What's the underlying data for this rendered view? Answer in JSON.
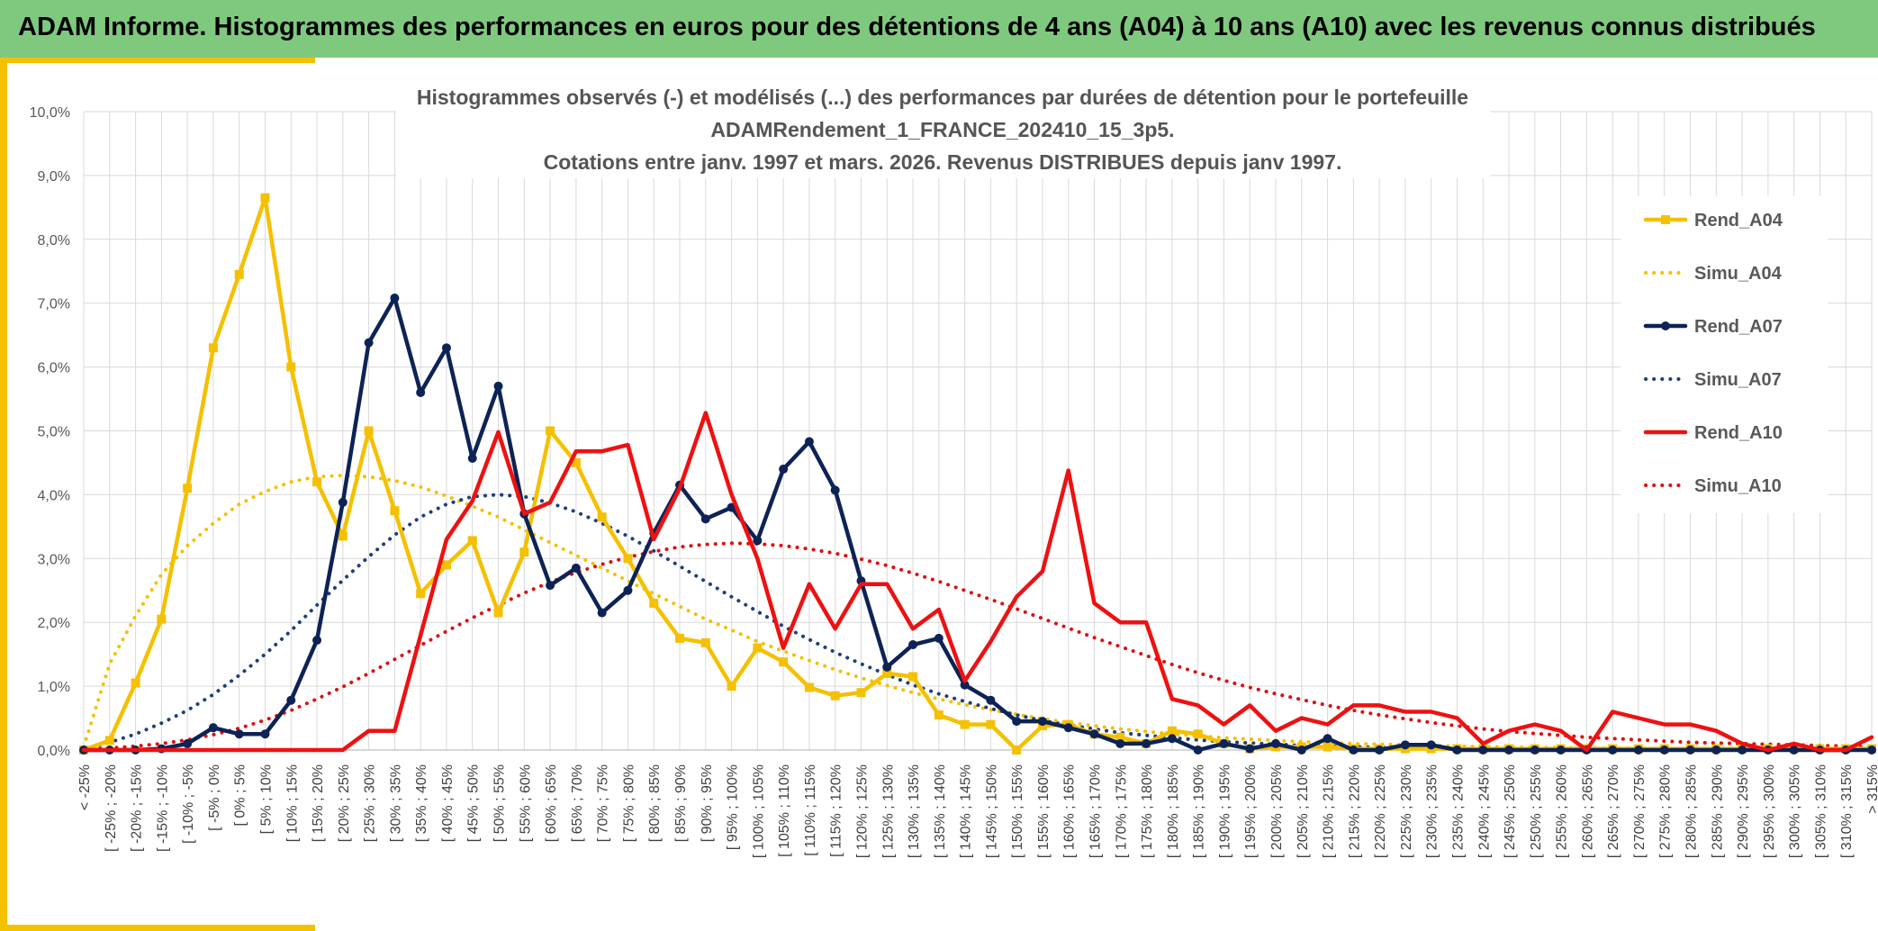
{
  "header": {
    "title": "ADAM Informe. Histogrammes des performances en euros pour des détentions de 4 ans (A04) à 10 ans (A10) avec les revenus connus distribués"
  },
  "chart_data": {
    "type": "line",
    "title_lines": [
      "Histogrammes observés (-) et modélisés (...) des performances par durées de détention pour le portefeuille",
      "ADAMRendement_1_FRANCE_202410_15_3p5.",
      "Cotations entre janv. 1997 et mars. 2026. Revenus DISTRIBUES depuis janv 1997."
    ],
    "xlabel": "",
    "ylabel": "",
    "ylim": [
      0,
      10
    ],
    "y_ticks": [
      "0,0%",
      "1,0%",
      "2,0%",
      "3,0%",
      "4,0%",
      "5,0%",
      "6,0%",
      "7,0%",
      "8,0%",
      "9,0%",
      "10,0%"
    ],
    "grid": true,
    "legend_position": "right",
    "categories": [
      "< -25%",
      "[ -25% ; -20%",
      "[ -20% ; -15%",
      "[ -15% ; -10%",
      "[ -10% ; -5%",
      "[ -5% ; 0%",
      "[ 0% ; 5%",
      "[ 5% ; 10%",
      "[ 10% ; 15%",
      "[ 15% ; 20%",
      "[ 20% ; 25%",
      "[ 25% ; 30%",
      "[ 30% ; 35%",
      "[ 35% ; 40%",
      "[ 40% ; 45%",
      "[ 45% ; 50%",
      "[ 50% ; 55%",
      "[ 55% ; 60%",
      "[ 60% ; 65%",
      "[ 65% ; 70%",
      "[ 70% ; 75%",
      "[ 75% ; 80%",
      "[ 80% ; 85%",
      "[ 85% ; 90%",
      "[ 90% ; 95%",
      "[ 95% ; 100%",
      "[ 100% ; 105%",
      "[ 105% ; 110%",
      "[ 110% ; 115%",
      "[ 115% ; 120%",
      "[ 120% ; 125%",
      "[ 125% ; 130%",
      "[ 130% ; 135%",
      "[ 135% ; 140%",
      "[ 140% ; 145%",
      "[ 145% ; 150%",
      "[ 150% ; 155%",
      "[ 155% ; 160%",
      "[ 160% ; 165%",
      "[ 165% ; 170%",
      "[ 170% ; 175%",
      "[ 175% ; 180%",
      "[ 180% ; 185%",
      "[ 185% ; 190%",
      "[ 190% ; 195%",
      "[ 195% ; 200%",
      "[ 200% ; 205%",
      "[ 205% ; 210%",
      "[ 210% ; 215%",
      "[ 215% ; 220%",
      "[ 220% ; 225%",
      "[ 225% ; 230%",
      "[ 230% ; 235%",
      "[ 235% ; 240%",
      "[ 240% ; 245%",
      "[ 245% ; 250%",
      "[ 250% ; 255%",
      "[ 255% ; 260%",
      "[ 260% ; 265%",
      "[ 265% ; 270%",
      "[ 270% ; 275%",
      "[ 275% ; 280%",
      "[ 280% ; 285%",
      "[ 285% ; 290%",
      "[ 290% ; 295%",
      "[ 295% ; 300%",
      "[ 300% ; 305%",
      "[ 305% ; 310%",
      "[ 310% ; 315%",
      "> 315%"
    ],
    "series": [
      {
        "name": "Rend_A04",
        "color": "#f5c000",
        "style": "solid",
        "marker": "square",
        "values": [
          0.0,
          0.15,
          1.05,
          2.05,
          4.1,
          6.3,
          7.45,
          8.65,
          6.0,
          4.2,
          3.35,
          5.0,
          3.75,
          2.45,
          2.9,
          3.28,
          2.15,
          3.1,
          5.0,
          4.5,
          3.65,
          3.0,
          2.3,
          1.75,
          1.68,
          1.0,
          1.6,
          1.38,
          0.98,
          0.85,
          0.9,
          1.2,
          1.15,
          0.55,
          0.4,
          0.4,
          0.0,
          0.38,
          0.4,
          0.25,
          0.2,
          0.1,
          0.3,
          0.25,
          0.1,
          0.02,
          0.05,
          0.05,
          0.05,
          0.02,
          0.02,
          0.02,
          0.02,
          0.02,
          0.02,
          0.02,
          0.02,
          0.02,
          0.02,
          0.02,
          0.02,
          0.02,
          0.02,
          0.02,
          0.02,
          0.02,
          0.02,
          0.02,
          0.02,
          0.02
        ]
      },
      {
        "name": "Simu_A04",
        "color": "#f5c000",
        "style": "dotted",
        "marker": "none",
        "values": [
          0.05,
          1.35,
          2.1,
          2.75,
          3.2,
          3.55,
          3.85,
          4.05,
          4.2,
          4.28,
          4.3,
          4.28,
          4.22,
          4.12,
          3.98,
          3.82,
          3.65,
          3.45,
          3.25,
          3.05,
          2.85,
          2.65,
          2.45,
          2.25,
          2.05,
          1.88,
          1.7,
          1.55,
          1.4,
          1.26,
          1.13,
          1.01,
          0.9,
          0.8,
          0.71,
          0.63,
          0.56,
          0.49,
          0.43,
          0.38,
          0.33,
          0.29,
          0.25,
          0.22,
          0.19,
          0.17,
          0.15,
          0.13,
          0.11,
          0.1,
          0.09,
          0.08,
          0.07,
          0.06,
          0.05,
          0.05,
          0.04,
          0.04,
          0.03,
          0.03,
          0.03,
          0.02,
          0.02,
          0.02,
          0.02,
          0.02,
          0.01,
          0.01,
          0.01,
          0.01
        ]
      },
      {
        "name": "Rend_A07",
        "color": "#0d2356",
        "style": "solid",
        "marker": "circle",
        "values": [
          0.0,
          0.0,
          0.0,
          0.02,
          0.1,
          0.35,
          0.25,
          0.25,
          0.78,
          1.72,
          3.88,
          6.38,
          7.08,
          5.6,
          6.3,
          4.57,
          5.7,
          3.7,
          2.58,
          2.85,
          2.15,
          2.5,
          3.4,
          4.15,
          3.62,
          3.8,
          3.28,
          4.4,
          4.83,
          4.07,
          2.65,
          1.3,
          1.65,
          1.75,
          1.02,
          0.78,
          0.45,
          0.45,
          0.35,
          0.25,
          0.1,
          0.1,
          0.18,
          0.0,
          0.1,
          0.02,
          0.1,
          0.0,
          0.18,
          0.0,
          0.0,
          0.08,
          0.08,
          0.0,
          0.0,
          0.0,
          0.0,
          0.0,
          0.0,
          0.0,
          0.0,
          0.0,
          0.0,
          0.0,
          0.0,
          0.0,
          0.0,
          0.0,
          0.0,
          0.0
        ]
      },
      {
        "name": "Simu_A07",
        "color": "#1f3f7a",
        "style": "dotted",
        "marker": "none",
        "values": [
          0.02,
          0.12,
          0.25,
          0.42,
          0.62,
          0.87,
          1.17,
          1.5,
          1.87,
          2.27,
          2.66,
          3.03,
          3.37,
          3.65,
          3.85,
          3.97,
          4.0,
          3.97,
          3.87,
          3.73,
          3.55,
          3.35,
          3.12,
          2.88,
          2.64,
          2.4,
          2.17,
          1.94,
          1.73,
          1.53,
          1.35,
          1.18,
          1.02,
          0.88,
          0.76,
          0.65,
          0.55,
          0.46,
          0.39,
          0.33,
          0.27,
          0.23,
          0.19,
          0.16,
          0.13,
          0.11,
          0.09,
          0.07,
          0.06,
          0.05,
          0.04,
          0.03,
          0.03,
          0.02,
          0.02,
          0.02,
          0.01,
          0.01,
          0.01,
          0.01,
          0.01,
          0.01,
          0.0,
          0.0,
          0.0,
          0.0,
          0.0,
          0.0,
          0.0,
          0.0
        ]
      },
      {
        "name": "Rend_A10",
        "color": "#ee1111",
        "style": "solid",
        "marker": "none",
        "values": [
          0.0,
          0.0,
          0.0,
          0.0,
          0.0,
          0.0,
          0.0,
          0.0,
          0.0,
          0.0,
          0.0,
          0.3,
          0.3,
          1.8,
          3.3,
          3.9,
          4.98,
          3.7,
          3.88,
          4.68,
          4.68,
          4.78,
          3.3,
          4.1,
          5.28,
          4.0,
          3.0,
          1.6,
          2.6,
          1.9,
          2.6,
          2.6,
          1.9,
          2.2,
          1.08,
          1.7,
          2.4,
          2.8,
          4.38,
          2.3,
          2.0,
          2.0,
          0.8,
          0.7,
          0.4,
          0.7,
          0.3,
          0.5,
          0.4,
          0.7,
          0.7,
          0.6,
          0.6,
          0.5,
          0.1,
          0.3,
          0.4,
          0.3,
          0.0,
          0.6,
          0.5,
          0.4,
          0.4,
          0.3,
          0.1,
          0.0,
          0.1,
          0.0,
          0.0,
          0.2
        ]
      },
      {
        "name": "Simu_A10",
        "color": "#dd1111",
        "style": "dotted",
        "marker": "none",
        "values": [
          0.02,
          0.03,
          0.06,
          0.1,
          0.16,
          0.24,
          0.34,
          0.47,
          0.62,
          0.8,
          0.99,
          1.2,
          1.42,
          1.64,
          1.86,
          2.07,
          2.27,
          2.46,
          2.63,
          2.78,
          2.91,
          3.02,
          3.11,
          3.18,
          3.22,
          3.24,
          3.23,
          3.2,
          3.15,
          3.08,
          2.99,
          2.89,
          2.77,
          2.64,
          2.5,
          2.36,
          2.21,
          2.06,
          1.91,
          1.76,
          1.62,
          1.48,
          1.34,
          1.21,
          1.09,
          0.98,
          0.88,
          0.79,
          0.7,
          0.62,
          0.55,
          0.49,
          0.43,
          0.38,
          0.33,
          0.29,
          0.26,
          0.23,
          0.2,
          0.18,
          0.16,
          0.14,
          0.12,
          0.11,
          0.1,
          0.09,
          0.08,
          0.07,
          0.06,
          0.05
        ]
      }
    ]
  }
}
